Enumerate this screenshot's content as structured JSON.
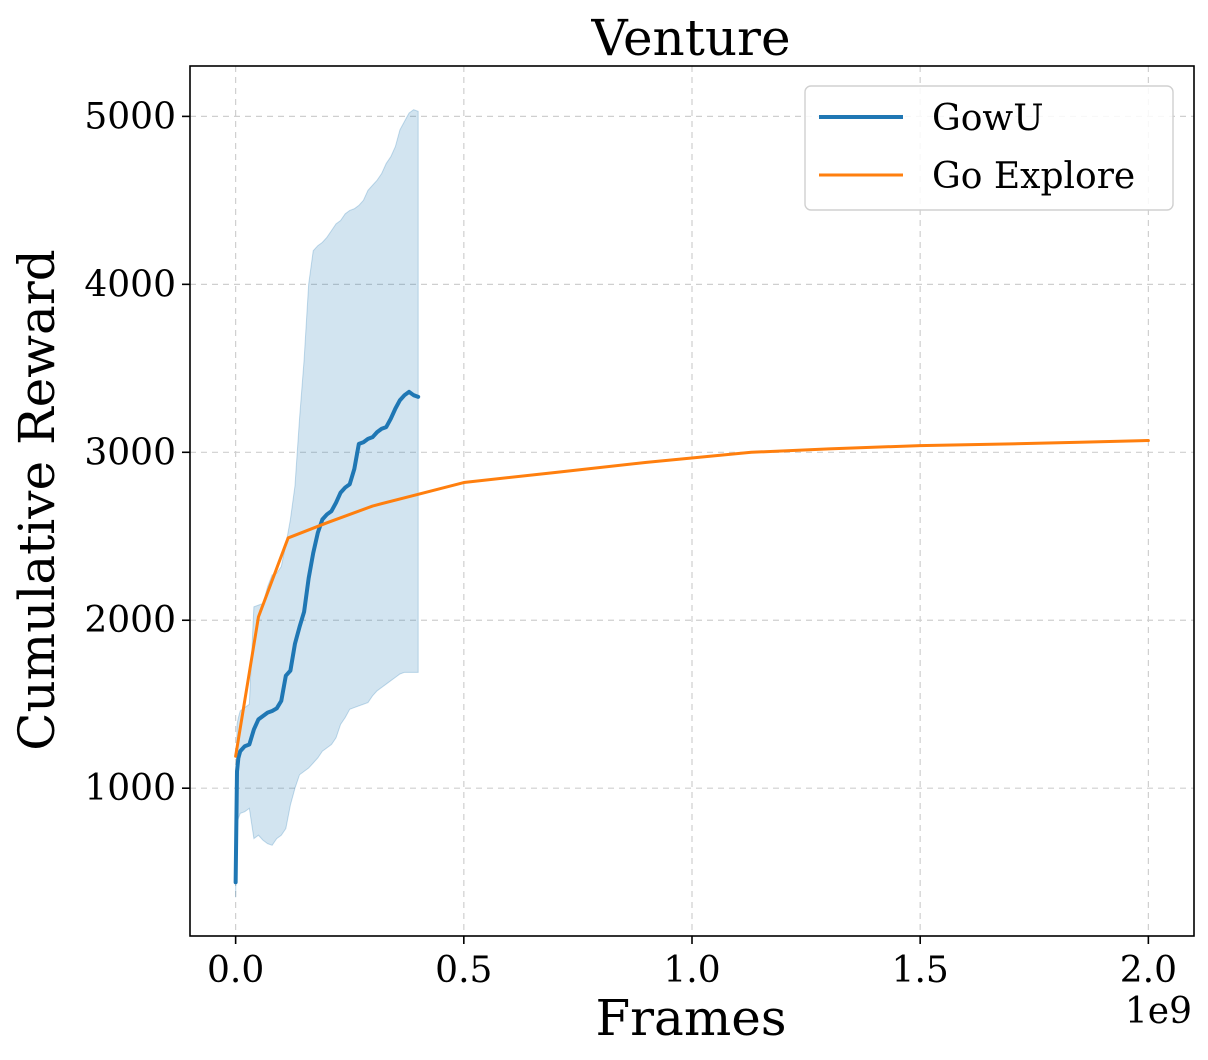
{
  "chart_data": {
    "type": "line",
    "title": "Venture",
    "xlabel": "Frames",
    "ylabel": "Cumulative Reward",
    "x_scale_label": "1e9",
    "xlim": [
      -0.1,
      2.1
    ],
    "ylim": [
      120,
      5300
    ],
    "x_ticks": [
      0.0,
      0.5,
      1.0,
      1.5,
      2.0
    ],
    "x_tick_labels": [
      "0.0",
      "0.5",
      "1.0",
      "1.5",
      "2.0"
    ],
    "y_ticks": [
      1000,
      2000,
      3000,
      4000,
      5000
    ],
    "y_tick_labels": [
      "1000",
      "2000",
      "3000",
      "4000",
      "5000"
    ],
    "grid": true,
    "legend_position": "top-right",
    "series": [
      {
        "name": "GowU",
        "color": "#1f77b4",
        "x": [
          0.0,
          0.003,
          0.006,
          0.01,
          0.02,
          0.03,
          0.04,
          0.05,
          0.06,
          0.07,
          0.08,
          0.09,
          0.1,
          0.11,
          0.12,
          0.13,
          0.14,
          0.15,
          0.16,
          0.17,
          0.18,
          0.19,
          0.2,
          0.21,
          0.22,
          0.23,
          0.24,
          0.25,
          0.26,
          0.27,
          0.28,
          0.29,
          0.3,
          0.31,
          0.32,
          0.33,
          0.34,
          0.35,
          0.36,
          0.37,
          0.38,
          0.39,
          0.4
        ],
        "y": [
          440,
          1100,
          1180,
          1220,
          1250,
          1260,
          1350,
          1410,
          1430,
          1450,
          1460,
          1475,
          1520,
          1670,
          1700,
          1860,
          1960,
          2050,
          2250,
          2400,
          2520,
          2600,
          2630,
          2650,
          2700,
          2760,
          2790,
          2810,
          2900,
          3050,
          3060,
          3080,
          3090,
          3120,
          3140,
          3150,
          3200,
          3260,
          3310,
          3340,
          3360,
          3340,
          3330
        ],
        "band_upper": [
          600,
          1380,
          1420,
          1460,
          1480,
          1500,
          2080,
          2090,
          2100,
          2200,
          2270,
          2280,
          2320,
          2450,
          2600,
          2800,
          3200,
          3550,
          4000,
          4200,
          4230,
          4250,
          4280,
          4320,
          4360,
          4380,
          4420,
          4440,
          4450,
          4470,
          4500,
          4560,
          4590,
          4620,
          4660,
          4720,
          4760,
          4820,
          4920,
          4970,
          5020,
          5040,
          5030
        ],
        "band_lower": [
          350,
          800,
          820,
          850,
          860,
          880,
          700,
          720,
          690,
          670,
          660,
          700,
          720,
          760,
          900,
          1000,
          1080,
          1100,
          1120,
          1150,
          1180,
          1220,
          1240,
          1260,
          1300,
          1380,
          1420,
          1470,
          1480,
          1490,
          1500,
          1510,
          1550,
          1580,
          1600,
          1620,
          1640,
          1660,
          1680,
          1690,
          1690,
          1690,
          1690
        ]
      },
      {
        "name": "Go Explore",
        "color": "#ff7f0e",
        "x": [
          0.0,
          0.05,
          0.115,
          0.2,
          0.3,
          0.4,
          0.5,
          0.7,
          0.9,
          1.13,
          1.3,
          1.5,
          1.7,
          1.85,
          2.0
        ],
        "y": [
          1190,
          2020,
          2490,
          2580,
          2680,
          2750,
          2820,
          2880,
          2940,
          3000,
          3020,
          3040,
          3050,
          3060,
          3070
        ]
      }
    ]
  }
}
